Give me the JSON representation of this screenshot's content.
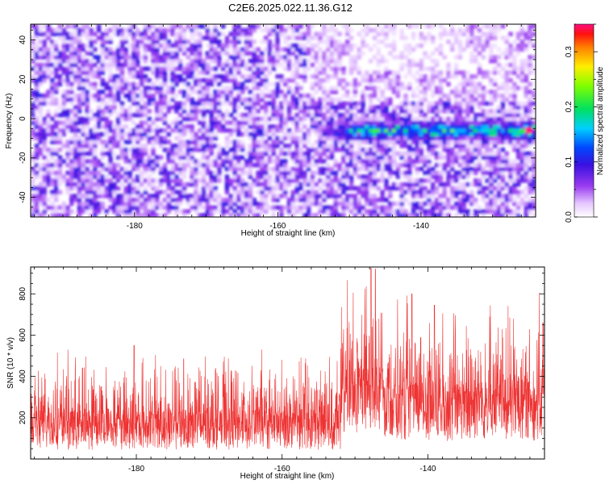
{
  "title": "C2E6.2025.022.11.36.G12",
  "chart_data": [
    {
      "type": "heatmap",
      "title": "C2E6.2025.022.11.36.G12",
      "xlabel": "Height of straight line (km)",
      "ylabel": "Frequency (Hz)",
      "xlim": [
        -194.5,
        -124
      ],
      "ylim": [
        -50,
        48
      ],
      "xticks": [
        -180,
        -160,
        -140
      ],
      "yticks": [
        -40,
        -20,
        0,
        20,
        40
      ],
      "grid": false,
      "colorbar": {
        "label": "Normalized spectral amplitude",
        "range": [
          0,
          0.35
        ],
        "ticks": [
          0.0,
          0.1,
          0.2,
          0.3
        ],
        "colormap": "rainbow (white-violet-blue-cyan-green-yellow-red-magenta)"
      },
      "features": [
        {
          "description": "background noise speckle",
          "x_range": [
            -194.5,
            -124
          ],
          "freq_range": [
            -50,
            48
          ],
          "amplitude": [
            0.0,
            0.12
          ]
        },
        {
          "description": "signal band",
          "x_range": [
            -156,
            -124
          ],
          "freq_center": -6,
          "freq_width": 10,
          "amplitude": [
            0.1,
            0.35
          ],
          "peak": {
            "x": -125,
            "freq": -6,
            "amplitude": 0.35
          }
        }
      ]
    },
    {
      "type": "line",
      "xlabel": "Height of straight line (km)",
      "ylabel": "SNR (10 * v/v)",
      "xlim": [
        -194.5,
        -124
      ],
      "ylim": [
        0,
        930
      ],
      "xticks": [
        -180,
        -160,
        -140
      ],
      "yticks": [
        200,
        400,
        600,
        800
      ],
      "color": "#ee3333",
      "baseline_segments": [
        {
          "x_range": [
            -194.5,
            -152
          ],
          "typical": 140,
          "spread": 120,
          "peak": 550
        },
        {
          "x_range": [
            -152,
            -146
          ],
          "typical": 280,
          "spread": 200,
          "peak": 925
        },
        {
          "x_range": [
            -146,
            -124
          ],
          "typical": 230,
          "spread": 180,
          "peak": 800
        }
      ],
      "peaks": [
        {
          "x": -180.3,
          "y": 550
        },
        {
          "x": -173.5,
          "y": 485
        },
        {
          "x": -147.8,
          "y": 925
        },
        {
          "x": -147.2,
          "y": 920
        },
        {
          "x": -142.2,
          "y": 800
        },
        {
          "x": -139.1,
          "y": 745
        },
        {
          "x": -124.2,
          "y": 660
        }
      ]
    }
  ]
}
